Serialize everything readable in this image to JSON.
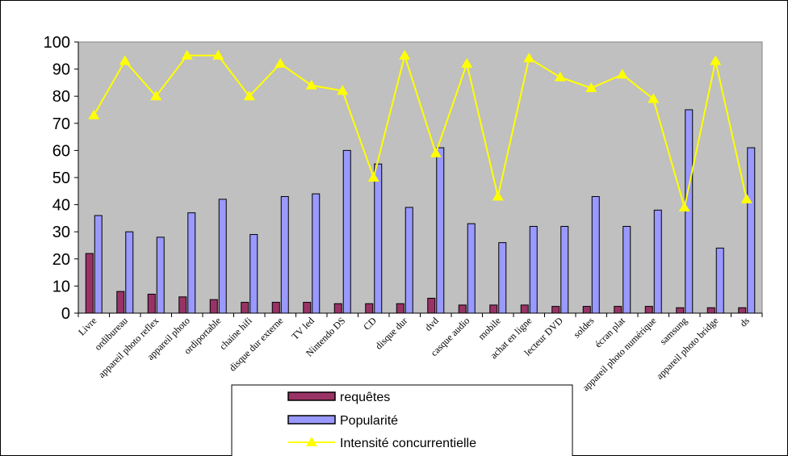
{
  "chart_data": {
    "type": "bar",
    "categories": [
      "Livre",
      "ordibureau",
      "appareil photo reflex",
      "appareil photo",
      "ordiportable",
      "chaine hifi",
      "disque dur externe",
      "TV led",
      "Nintendo DS",
      "CD",
      "disque dur",
      "dvd",
      "casque audio",
      "mobile",
      "achat en ligne",
      "lecteur DVD",
      "soldes",
      "écran plat",
      "appareil photo numérique",
      "samsung",
      "appareil photo bridge",
      "ds"
    ],
    "series": [
      {
        "name": "requêtes",
        "kind": "bar",
        "color": "#993366",
        "values": [
          22,
          8,
          7,
          6,
          5,
          4,
          4,
          4,
          3.5,
          3.5,
          3.5,
          5.5,
          3,
          3,
          3,
          2.5,
          2.5,
          2.5,
          2.5,
          2,
          2,
          2
        ]
      },
      {
        "name": "Popularité",
        "kind": "bar",
        "color": "#9999FF",
        "values": [
          36,
          30,
          28,
          37,
          42,
          29,
          43,
          44,
          60,
          55,
          39,
          61,
          33,
          26,
          32,
          32,
          43,
          32,
          38,
          75,
          24,
          61
        ]
      },
      {
        "name": "Intensité concurrentielle",
        "kind": "line",
        "color": "#FFFF00",
        "values": [
          73,
          93,
          80,
          95,
          95,
          80,
          92,
          84,
          82,
          50,
          95,
          59,
          92,
          43,
          94,
          87,
          83,
          88,
          79,
          39,
          93,
          42
        ]
      }
    ],
    "ylim": [
      0,
      100
    ],
    "yticks": [
      0,
      10,
      20,
      30,
      40,
      50,
      60,
      70,
      80,
      90,
      100
    ],
    "grid": false,
    "plot_background": "#C0C0C0",
    "legend_position": "bottom"
  }
}
